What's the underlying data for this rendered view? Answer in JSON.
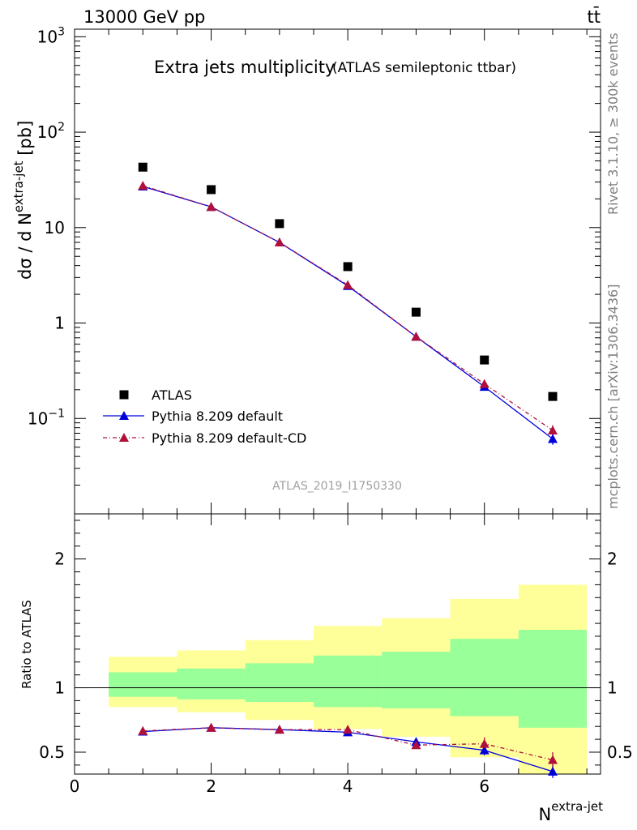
{
  "header": {
    "left": "13000 GeV pp",
    "right": "tt̄"
  },
  "side_texts": {
    "rivet": "Rivet 3.1.10, ≥ 300k events",
    "mcplots": "mcplots.cern.ch [arXiv:1306.3436]"
  },
  "chart_data": [
    {
      "type": "scatter",
      "title": "Extra jets multiplicity",
      "subtitle": "(ATLAS semileptonic ttbar)",
      "watermark": "ATLAS_2019_I1750330",
      "ylabel": "dσ / d N^extra-jet [pb]",
      "yscale": "log",
      "ylim": [
        0.01,
        1200
      ],
      "xlim": [
        0,
        7.7
      ],
      "y_tick_labels": [
        "10^−1",
        "1",
        "10",
        "10^2",
        "10^3"
      ],
      "legend_position": "bottom-left",
      "series": [
        {
          "name": "ATLAS",
          "marker": "square",
          "color": "#000000",
          "x": [
            1,
            2,
            3,
            4,
            5,
            6,
            7
          ],
          "y": [
            43,
            25,
            11,
            3.9,
            1.3,
            0.41,
            0.17
          ]
        },
        {
          "name": "Pythia 8.209 default",
          "marker": "triangle",
          "line": "solid",
          "color": "#0000dd",
          "x": [
            1,
            2,
            3,
            4,
            5,
            6,
            7
          ],
          "y": [
            27,
            16.5,
            7.0,
            2.45,
            0.72,
            0.215,
            0.061
          ],
          "yerr": [
            0.3,
            0.2,
            0.1,
            0.04,
            0.015,
            0.01,
            0.008
          ]
        },
        {
          "name": "Pythia 8.209 default-CD",
          "marker": "triangle",
          "line": "dash-dot",
          "color": "#b0103a",
          "x": [
            1,
            2,
            3,
            4,
            5,
            6,
            7
          ],
          "y": [
            27.5,
            16.5,
            7.0,
            2.5,
            0.72,
            0.23,
            0.075
          ],
          "yerr": [
            0.3,
            0.2,
            0.1,
            0.04,
            0.015,
            0.015,
            0.01
          ]
        }
      ]
    },
    {
      "type": "scatter",
      "ylabel": "Ratio to ATLAS",
      "xlabel": "N^extra-jet",
      "ylim": [
        0.33,
        2.35
      ],
      "xlim": [
        0,
        7.7
      ],
      "x_ticks": [
        0,
        2,
        4,
        6
      ],
      "y_ticks": [
        0.5,
        1,
        2
      ],
      "reference_line": 1,
      "bands": {
        "bin_edges": [
          0.5,
          1.5,
          2.5,
          3.5,
          4.5,
          5.5,
          6.5,
          7.5
        ],
        "inner": {
          "color": "#99ff99",
          "low": [
            0.93,
            0.91,
            0.89,
            0.85,
            0.84,
            0.78,
            0.69
          ],
          "high": [
            1.12,
            1.15,
            1.19,
            1.25,
            1.28,
            1.38,
            1.45
          ]
        },
        "outer": {
          "color": "#ffff99",
          "low": [
            0.85,
            0.81,
            0.75,
            0.68,
            0.62,
            0.46,
            0.33
          ],
          "high": [
            1.24,
            1.29,
            1.37,
            1.48,
            1.54,
            1.69,
            1.8
          ]
        }
      },
      "series": [
        {
          "name": "Pythia 8.209 default",
          "color": "#0000dd",
          "x": [
            1,
            2,
            3,
            4,
            5,
            6,
            7
          ],
          "y": [
            0.66,
            0.69,
            0.675,
            0.655,
            0.58,
            0.515,
            0.35
          ],
          "yerr": [
            0.01,
            0.01,
            0.01,
            0.015,
            0.03,
            0.04,
            0.05
          ]
        },
        {
          "name": "Pythia 8.209 default-CD",
          "color": "#b0103a",
          "x": [
            1,
            2,
            3,
            4,
            5,
            6,
            7
          ],
          "y": [
            0.665,
            0.69,
            0.675,
            0.675,
            0.555,
            0.565,
            0.44
          ],
          "yerr": [
            0.01,
            0.01,
            0.01,
            0.02,
            0.03,
            0.05,
            0.06
          ]
        }
      ]
    }
  ]
}
